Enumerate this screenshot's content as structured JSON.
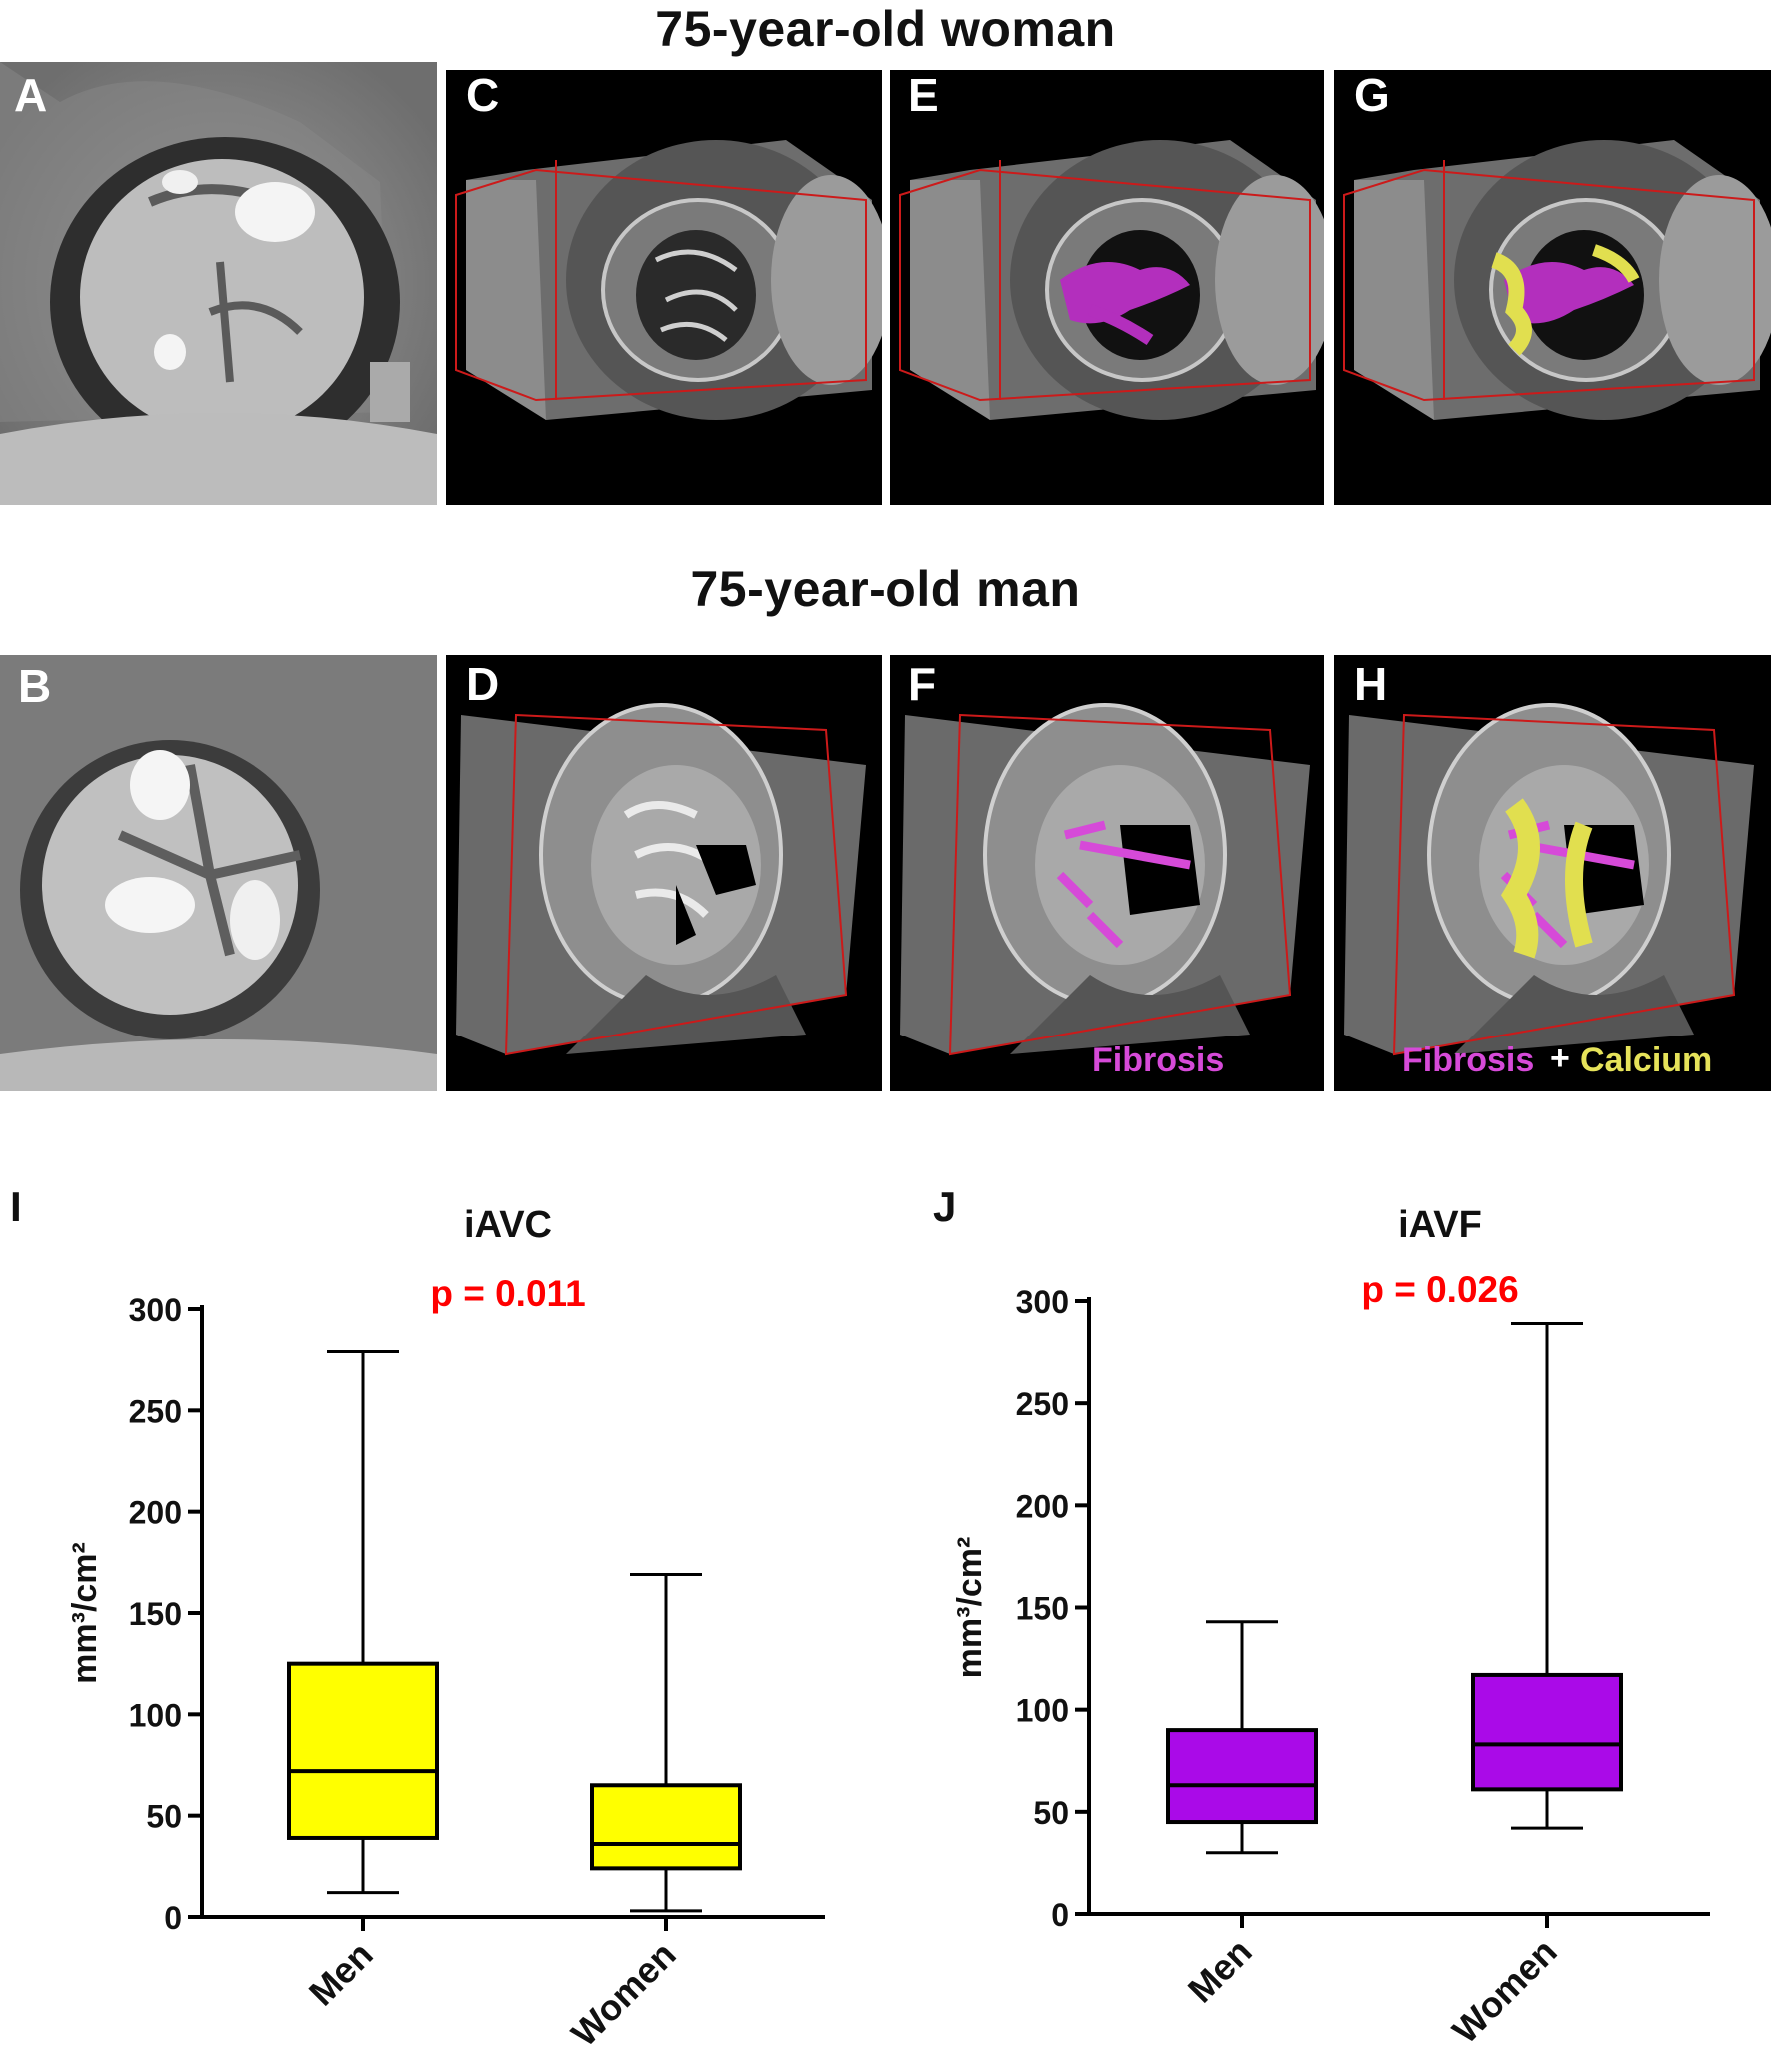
{
  "row_titles": {
    "top": "75-year-old woman",
    "bottom": "75-year-old man"
  },
  "panels": {
    "a": "A",
    "b": "B",
    "c": "C",
    "d": "D",
    "e": "E",
    "f": "F",
    "g": "G",
    "h": "H"
  },
  "legend": {
    "fibrosis": "Fibrosis",
    "plus": "+",
    "calcium": "Calcium"
  },
  "colors": {
    "fibrosis": "#d64ad8",
    "calcium": "#e6e35a",
    "iavc_box": "#ffff00",
    "iavf_box": "#aa0ae8",
    "pvalue": "#ff0000"
  },
  "chart_data": [
    {
      "panel_label": "I",
      "type": "box",
      "title": "iAVC",
      "pvalue_label": "p = 0.011",
      "ylabel": "mm³/cm²",
      "ylim": [
        0,
        300
      ],
      "yticks": [
        0,
        50,
        100,
        150,
        200,
        250,
        300
      ],
      "categories": [
        "Men",
        "Women"
      ],
      "boxes": [
        {
          "name": "Men",
          "min": 12,
          "q1": 39,
          "median": 72,
          "q3": 125,
          "max": 279
        },
        {
          "name": "Women",
          "min": 3,
          "q1": 24,
          "median": 36,
          "q3": 65,
          "max": 169
        }
      ],
      "fill": "#ffff00"
    },
    {
      "panel_label": "J",
      "type": "box",
      "title": "iAVF",
      "pvalue_label": "p = 0.026",
      "ylabel": "mm³/cm²",
      "ylim": [
        0,
        300
      ],
      "yticks": [
        0,
        50,
        100,
        150,
        200,
        250,
        300
      ],
      "categories": [
        "Men",
        "Women"
      ],
      "boxes": [
        {
          "name": "Men",
          "min": 30,
          "q1": 45,
          "median": 63,
          "q3": 90,
          "max": 143
        },
        {
          "name": "Women",
          "min": 42,
          "q1": 61,
          "median": 83,
          "q3": 117,
          "max": 289
        }
      ],
      "fill": "#aa0ae8"
    }
  ]
}
